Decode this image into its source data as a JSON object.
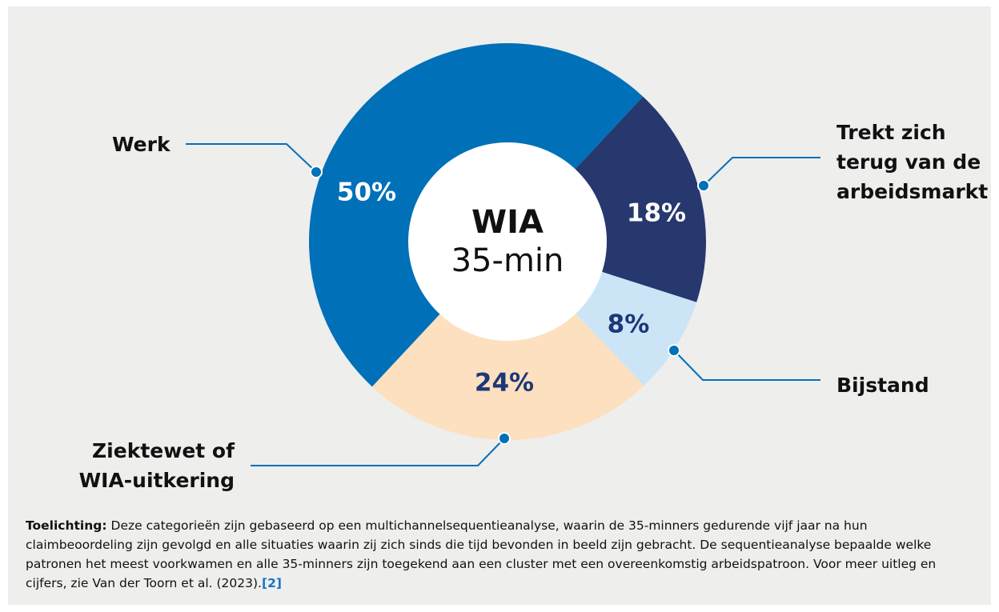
{
  "chart_data": {
    "type": "donut",
    "categories": [
      "Werk",
      "Trekt zich terug van de arbeidsmarkt",
      "Bijstand",
      "Ziektewet of WIA-uitkering"
    ],
    "values": [
      50,
      18,
      8,
      24
    ],
    "value_labels": [
      "50%",
      "18%",
      "8%",
      "24%"
    ],
    "colors": [
      "#0070b8",
      "#27386f",
      "#cbe5f7",
      "#fce0bf"
    ],
    "center_title": "WIA",
    "center_subtitle": "35-min"
  },
  "note": {
    "label": "Toelichting:",
    "text": "Deze categorieën zijn gebaseerd op een multichannelsequentieanalyse, waarin de 35-minners gedurende vijf jaar na hun claimbeoordeling zijn gevolgd en alle situaties waarin zij zich sinds die tijd bevonden in beeld zijn gebracht. De sequentieanalyse bepaalde welke patronen het meest voorkwamen en alle 35-minners zijn toegekend aan een cluster met een overeenkomstig arbeidspatroon. Voor meer uitleg en cijfers, zie Van der Toorn et al. (2023).",
    "reference": "[2]"
  }
}
